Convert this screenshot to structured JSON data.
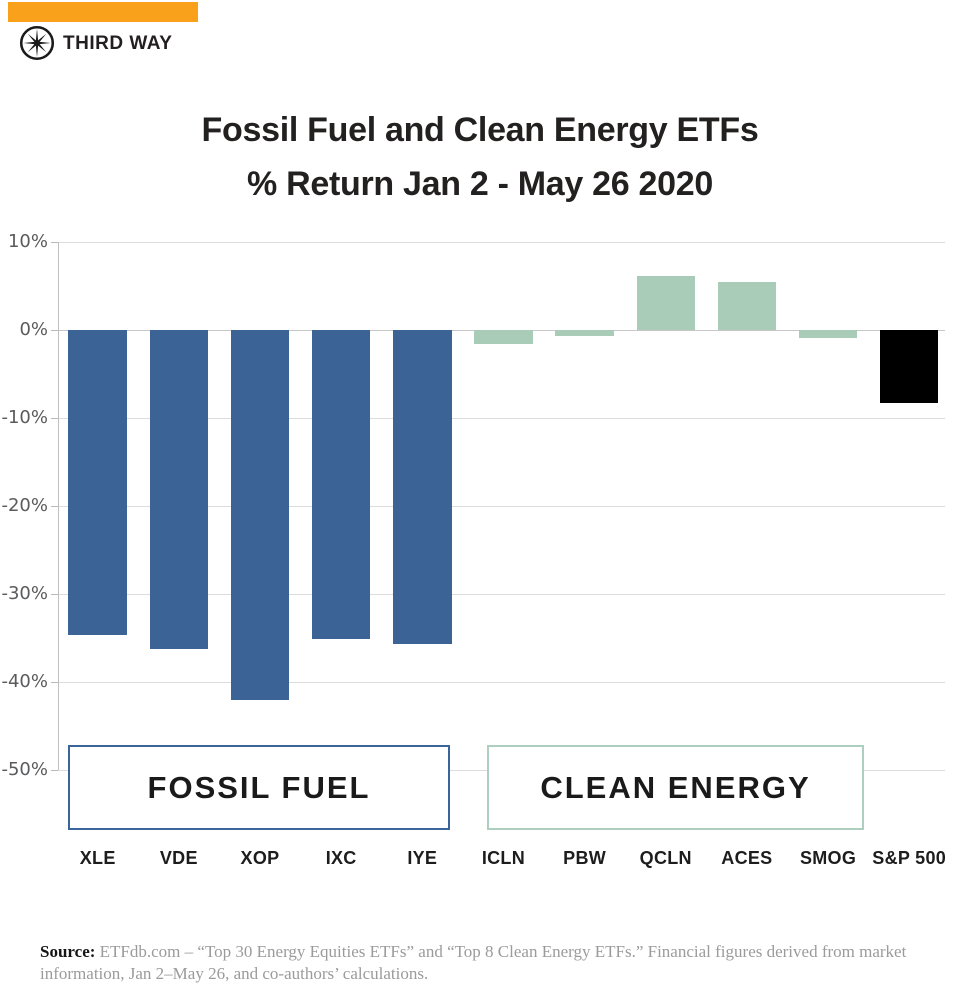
{
  "brand": {
    "name": "THIRD WAY",
    "logo_icon": "compass-star-icon",
    "topbar_color": "#F9A11B"
  },
  "title": {
    "line1": "Fossil Fuel and Clean Energy ETFs",
    "line2": "% Return Jan 2 - May 26 2020"
  },
  "chart_data": {
    "type": "bar",
    "title": "Fossil Fuel and Clean Energy ETFs % Return Jan 2 - May 26 2020",
    "categories": [
      "XLE",
      "VDE",
      "XOP",
      "IXC",
      "IYE",
      "ICLN",
      "PBW",
      "QCLN",
      "ACES",
      "SMOG",
      "S&P 500"
    ],
    "values": [
      -34.7,
      -36.2,
      -42.0,
      -35.1,
      -35.7,
      -1.6,
      -0.7,
      6.1,
      5.4,
      -0.9,
      -8.3
    ],
    "groups": [
      "fossil",
      "fossil",
      "fossil",
      "fossil",
      "fossil",
      "clean",
      "clean",
      "clean",
      "clean",
      "clean",
      "sp500"
    ],
    "group_labels": [
      {
        "id": "fossil",
        "label": "FOSSIL FUEL",
        "border_color": "#3A659B"
      },
      {
        "id": "clean",
        "label": "CLEAN ENERGY",
        "border_color": "#AECFC0"
      }
    ],
    "colors": {
      "fossil": "#3B6396",
      "clean": "#A9CCB9",
      "sp500": "#000000"
    },
    "y_ticks": [
      {
        "value": 10,
        "label": "10%"
      },
      {
        "value": 0,
        "label": "0%"
      },
      {
        "value": -10,
        "label": "-10%"
      },
      {
        "value": -20,
        "label": "-20%"
      },
      {
        "value": -30,
        "label": "-30%"
      },
      {
        "value": -40,
        "label": "-40%"
      },
      {
        "value": -50,
        "label": "-50%"
      }
    ],
    "ylim": [
      -55,
      10
    ],
    "ylabel": "",
    "xlabel": "",
    "grid": "horizontal",
    "legend": "none"
  },
  "source": {
    "label": "Source:",
    "text": "ETFdb.com – “Top 30 Energy Equities ETFs” and “Top 8 Clean Energy ETFs.” Financial figures derived from market information, Jan 2–May 26, and co-authors’ calculations."
  }
}
